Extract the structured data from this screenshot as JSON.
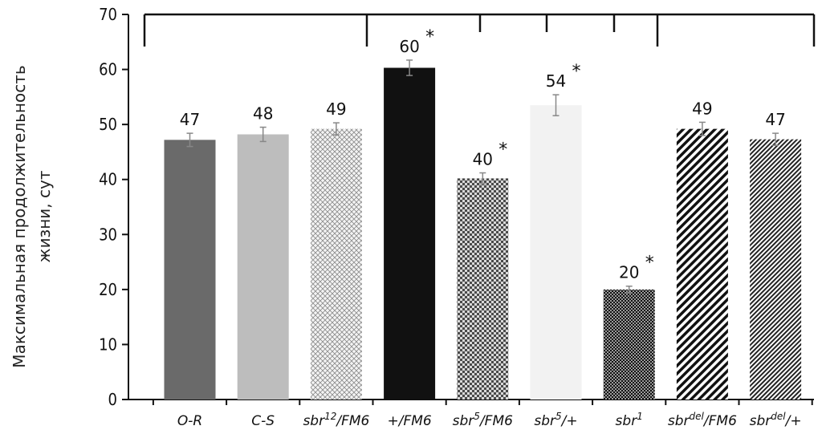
{
  "chart_data": {
    "type": "bar",
    "ylabel_line1": "Максимальная продолжительность",
    "ylabel_line2": "жизни, сут",
    "ylim": [
      0,
      70
    ],
    "yticks": [
      0,
      10,
      20,
      30,
      40,
      50,
      60,
      70
    ],
    "categories": [
      {
        "base": "O-R",
        "sup": "",
        "tail": ""
      },
      {
        "base": "C-S",
        "sup": "",
        "tail": ""
      },
      {
        "base": "sbr",
        "sup": "12",
        "tail": "/FM6"
      },
      {
        "base": "+/FM6",
        "sup": "",
        "tail": ""
      },
      {
        "base": "sbr",
        "sup": "5",
        "tail": "/FM6"
      },
      {
        "base": "sbr",
        "sup": "5",
        "tail": "/+"
      },
      {
        "base": "sbr",
        "sup": "1",
        "tail": ""
      },
      {
        "base": "sbr",
        "sup": "del",
        "tail": "/FM6"
      },
      {
        "base": "sbr",
        "sup": "del",
        "tail": "/+"
      }
    ],
    "values": [
      47,
      48,
      49,
      60,
      40,
      54,
      20,
      49,
      47
    ],
    "bar_heights": [
      47.2,
      48.2,
      49.2,
      60.3,
      40.2,
      53.5,
      20.0,
      49.2,
      47.3
    ],
    "errors": [
      1.2,
      1.3,
      1.1,
      1.4,
      1.0,
      1.9,
      0.6,
      1.2,
      1.1
    ],
    "significance": [
      "",
      "",
      "",
      "*",
      "*",
      "*",
      "*",
      "",
      ""
    ],
    "patterns": [
      "solid-darkgray",
      "solid-lightgray",
      "lattice-light",
      "solid-black",
      "checker-medium",
      "solid-white",
      "checker-dark",
      "diagonal-stripes",
      "diagonal-fine"
    ],
    "colors": {
      "solid-darkgray": "#6a6a6a",
      "solid-lightgray": "#bdbdbd",
      "solid-black": "#111111",
      "solid-white": "#f2f2f2",
      "axis": "#111111",
      "errorbar": "#888888"
    },
    "groups": [
      [
        0,
        2
      ],
      [
        3,
        6
      ],
      [
        7,
        8
      ]
    ]
  }
}
